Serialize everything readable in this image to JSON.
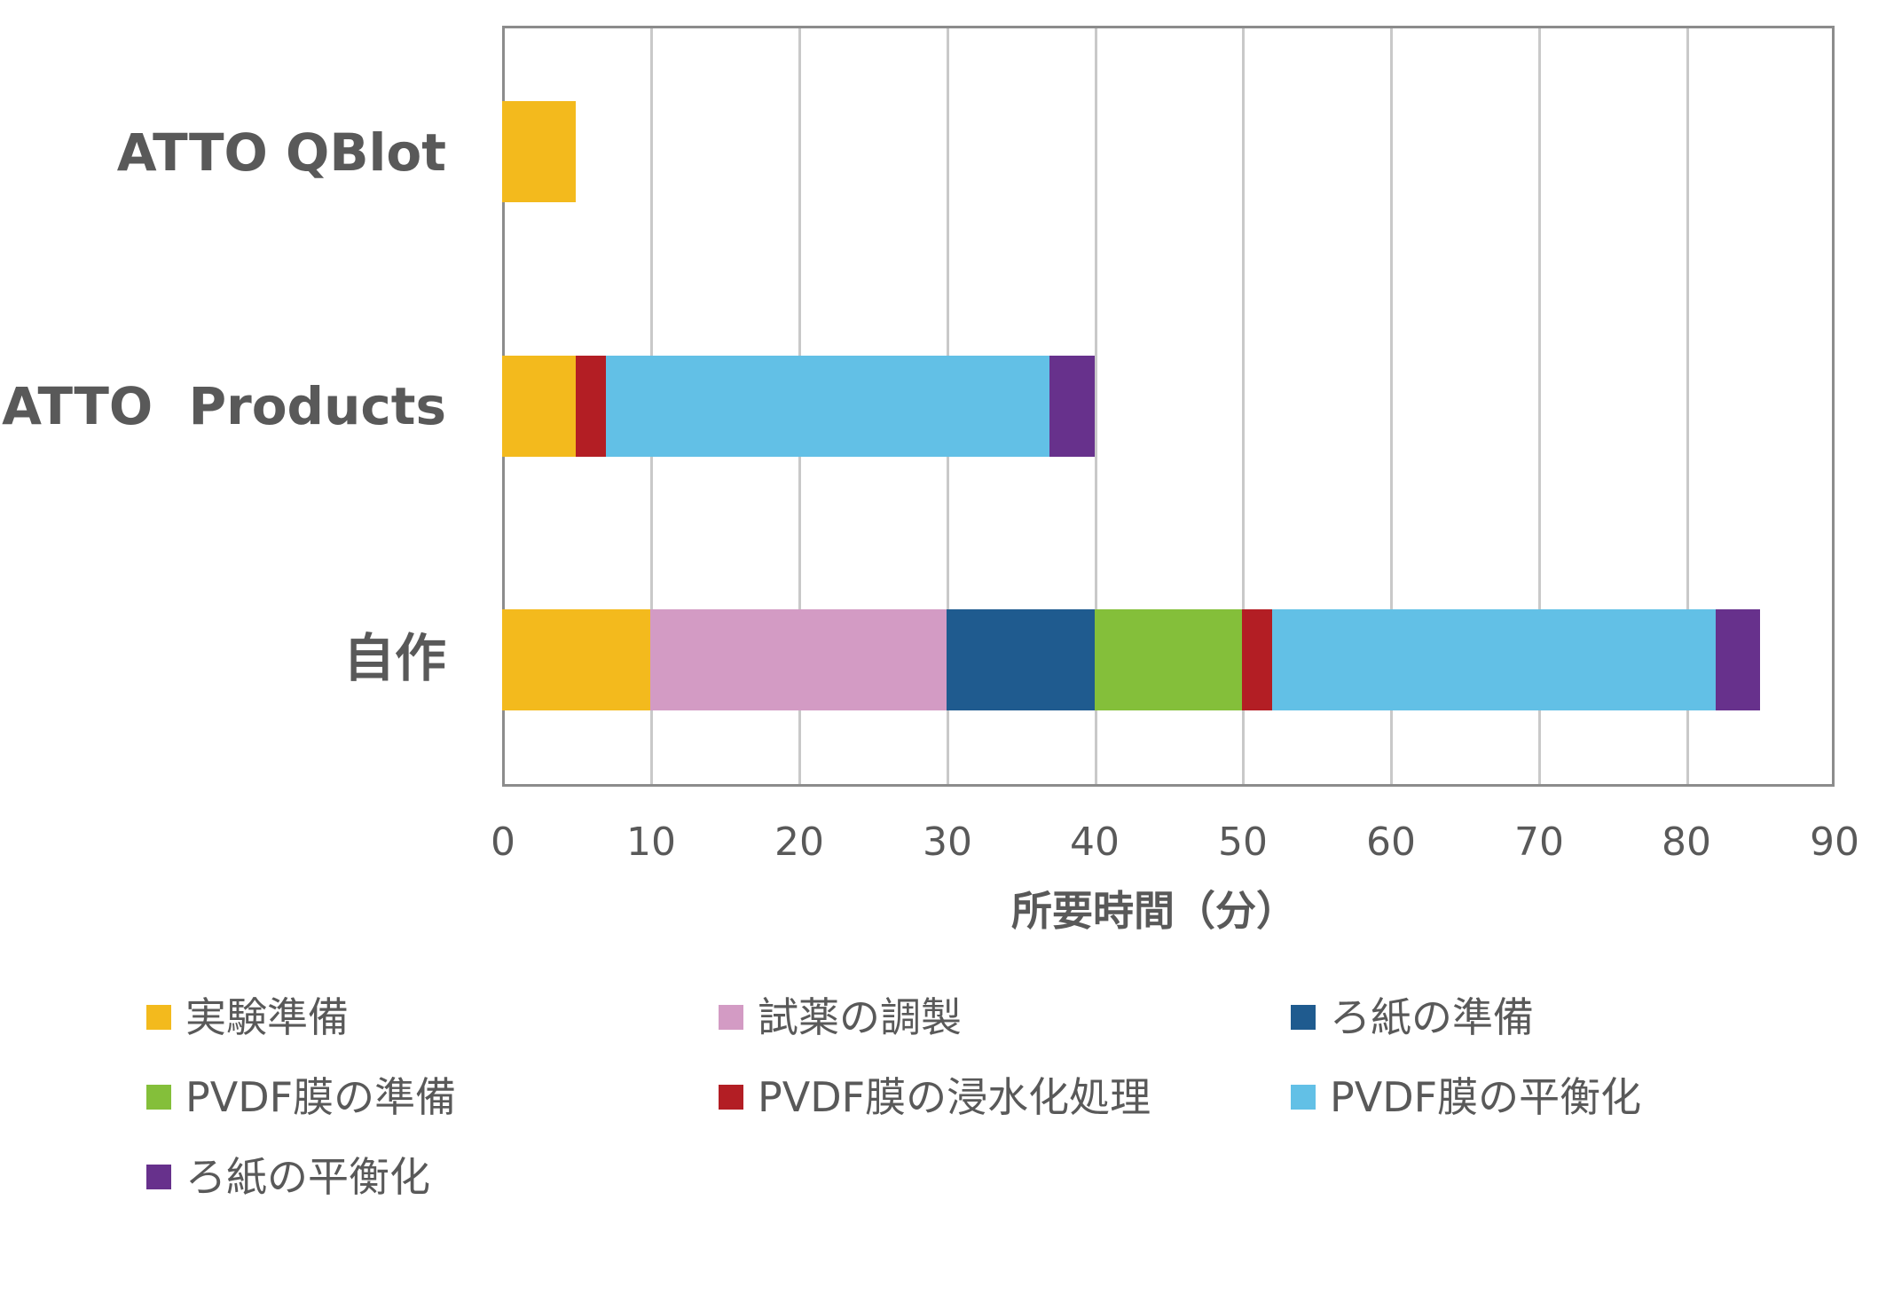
{
  "chart_data": {
    "type": "bar",
    "orientation": "horizontal",
    "stacked": true,
    "title": "",
    "xlabel": "所要時間（分）",
    "ylabel": "",
    "xlim": [
      0,
      90
    ],
    "xticks": [
      0,
      10,
      20,
      30,
      40,
      50,
      60,
      70,
      80,
      90
    ],
    "grid": true,
    "legend_position": "bottom",
    "categories": [
      "ATTO QBlot",
      "ATTO  Products",
      "自作"
    ],
    "series": [
      {
        "name": "実験準備",
        "color": "#F3BA1D",
        "values": [
          5,
          5,
          10
        ]
      },
      {
        "name": "試薬の調製",
        "color": "#D39BC4",
        "values": [
          0,
          0,
          20
        ]
      },
      {
        "name": "ろ紙の準備",
        "color": "#1F5B8F",
        "values": [
          0,
          0,
          10
        ]
      },
      {
        "name": "PVDF膜の準備",
        "color": "#84BF3A",
        "values": [
          0,
          0,
          10
        ]
      },
      {
        "name": "PVDF膜の浸水化処理",
        "color": "#B31E24",
        "values": [
          0,
          2,
          2
        ]
      },
      {
        "name": "PVDF膜の平衡化",
        "color": "#62C0E6",
        "values": [
          0,
          30,
          30
        ]
      },
      {
        "name": "ろ紙の平衡化",
        "color": "#67318C",
        "values": [
          0,
          3,
          3
        ]
      }
    ],
    "totals": [
      5,
      40,
      85
    ]
  },
  "axis": {
    "title": "所要時間（分）",
    "ticks": [
      "0",
      "10",
      "20",
      "30",
      "40",
      "50",
      "60",
      "70",
      "80",
      "90"
    ]
  },
  "categories": {
    "labels": [
      "ATTO QBlot",
      "ATTO  Products",
      "自作"
    ]
  },
  "legend": {
    "items": [
      {
        "label": "実験準備",
        "color": "#F3BA1D"
      },
      {
        "label": "試薬の調製",
        "color": "#D39BC4"
      },
      {
        "label": "ろ紙の準備",
        "color": "#1F5B8F"
      },
      {
        "label": "PVDF膜の準備",
        "color": "#84BF3A"
      },
      {
        "label": "PVDF膜の浸水化処理",
        "color": "#B31E24"
      },
      {
        "label": "PVDF膜の平衡化",
        "color": "#62C0E6"
      },
      {
        "label": "ろ紙の平衡化",
        "color": "#67318C"
      }
    ]
  }
}
